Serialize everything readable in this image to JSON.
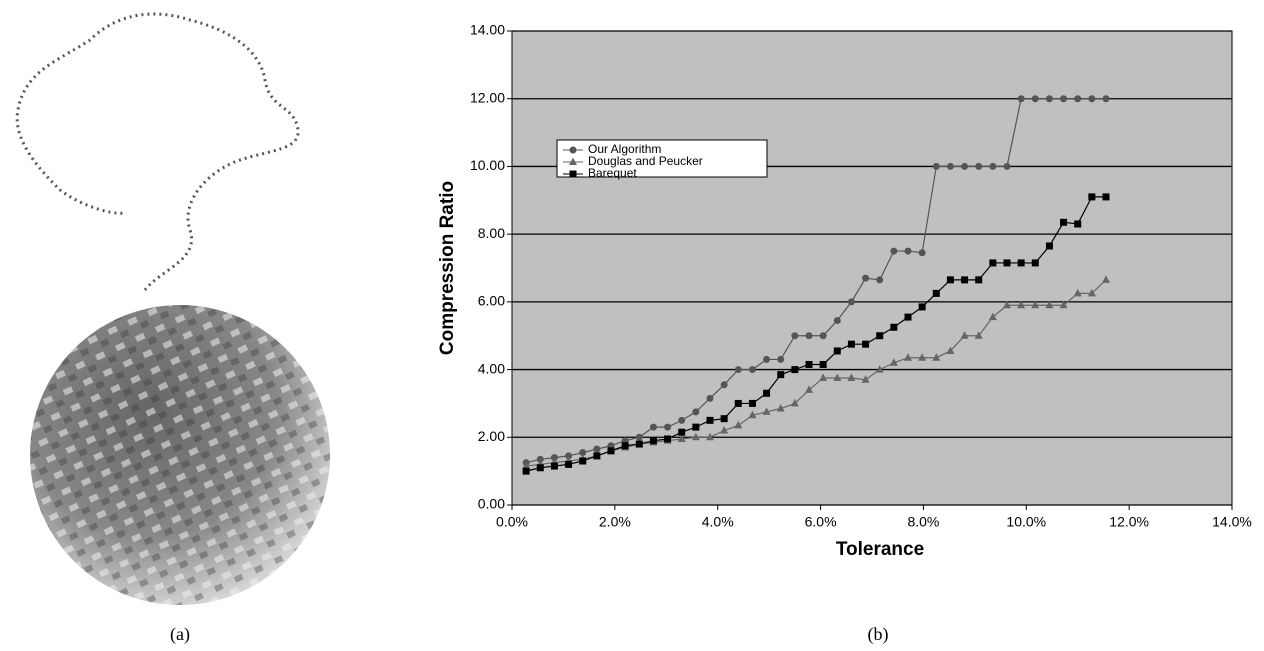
{
  "captions": [
    "(a)",
    "(b)"
  ],
  "chart_data": {
    "type": "line",
    "x_label": "Tolerance",
    "y_label": "Compression Ratio",
    "x": [
      0.275,
      0.55,
      0.825,
      1.1,
      1.375,
      1.65,
      1.925,
      2.2,
      2.475,
      2.75,
      3.025,
      3.3,
      3.575,
      3.85,
      4.125,
      4.4,
      4.675,
      4.95,
      5.225,
      5.5,
      5.775,
      6.05,
      6.325,
      6.6,
      6.875,
      7.15,
      7.425,
      7.7,
      7.975,
      8.25,
      8.525,
      8.8,
      9.075,
      9.35,
      9.625,
      9.9,
      10.175,
      10.45,
      10.725,
      11.0,
      11.275,
      11.55
    ],
    "series": [
      {
        "name": "Our Algorithm",
        "color": "#555555",
        "marker": "circle",
        "values": [
          1.25,
          1.35,
          1.4,
          1.45,
          1.55,
          1.65,
          1.75,
          1.9,
          2.0,
          2.3,
          2.3,
          2.5,
          2.75,
          3.15,
          3.55,
          4.0,
          4.0,
          4.3,
          4.3,
          5.0,
          5.0,
          5.0,
          5.45,
          6.0,
          6.7,
          6.65,
          7.5,
          7.5,
          7.45,
          10.0,
          10.0,
          10.0,
          10.0,
          10.0,
          10.0,
          12.0,
          12.0,
          12.0,
          12.0,
          12.0,
          12.0,
          12.0
        ]
      },
      {
        "name": "Douglas and Peucker",
        "color": "#666666",
        "marker": "triangle",
        "values": [
          1.15,
          1.2,
          1.25,
          1.3,
          1.35,
          1.45,
          1.6,
          1.7,
          1.8,
          1.85,
          1.9,
          1.95,
          2.0,
          2.0,
          2.2,
          2.35,
          2.65,
          2.75,
          2.85,
          3.0,
          3.4,
          3.75,
          3.75,
          3.75,
          3.7,
          4.0,
          4.2,
          4.35,
          4.35,
          4.35,
          4.55,
          5.0,
          5.0,
          5.55,
          5.9,
          5.9,
          5.9,
          5.9,
          5.9,
          6.25,
          6.25,
          6.65
        ]
      },
      {
        "name": "Barequet",
        "color": "#000000",
        "marker": "square",
        "values": [
          1.0,
          1.1,
          1.15,
          1.2,
          1.3,
          1.45,
          1.6,
          1.75,
          1.8,
          1.9,
          1.95,
          2.15,
          2.3,
          2.5,
          2.55,
          3.0,
          3.0,
          3.3,
          3.85,
          4.0,
          4.15,
          4.15,
          4.55,
          4.75,
          4.75,
          5.0,
          5.25,
          5.55,
          5.85,
          6.25,
          6.65,
          6.65,
          6.65,
          7.15,
          7.15,
          7.15,
          7.15,
          7.65,
          8.35,
          8.3,
          9.1,
          9.1
        ]
      }
    ],
    "xlim": [
      0,
      14
    ],
    "ylim": [
      0,
      14
    ],
    "xticks": [
      {
        "value": 0,
        "label": "0.0%"
      },
      {
        "value": 2,
        "label": "2.0%"
      },
      {
        "value": 4,
        "label": "4.0%"
      },
      {
        "value": 6,
        "label": "6.0%"
      },
      {
        "value": 8,
        "label": "8.0%"
      },
      {
        "value": 10,
        "label": "10.0%"
      },
      {
        "value": 12,
        "label": "12.0%"
      },
      {
        "value": 14,
        "label": "14.0%"
      }
    ],
    "yticks": [
      {
        "value": 0,
        "label": "0.00"
      },
      {
        "value": 2,
        "label": "2.00"
      },
      {
        "value": 4,
        "label": "4.00"
      },
      {
        "value": 6,
        "label": "6.00"
      },
      {
        "value": 8,
        "label": "8.00"
      },
      {
        "value": 10,
        "label": "10.00"
      },
      {
        "value": 12,
        "label": "12.00"
      },
      {
        "value": 14,
        "label": "14.00"
      }
    ],
    "grid": true
  }
}
